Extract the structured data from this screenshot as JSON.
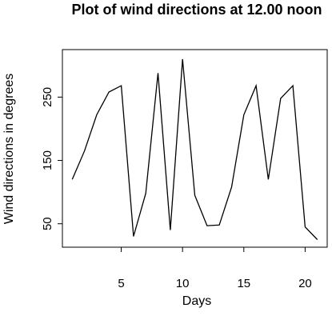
{
  "chart_data": {
    "type": "line",
    "title": "Plot of wind directions at 12.00 noon",
    "xlabel": "Days",
    "ylabel": "Wind directions in degrees",
    "x": [
      1,
      2,
      3,
      4,
      5,
      6,
      7,
      8,
      9,
      10,
      11,
      12,
      13,
      14,
      15,
      16,
      17,
      18,
      19,
      20,
      21
    ],
    "series": [
      {
        "values": [
          120,
          165,
          222,
          258,
          268,
          30,
          98,
          288,
          40,
          310,
          95,
          47,
          48,
          108,
          222,
          268,
          120,
          248,
          268,
          45,
          25
        ]
      }
    ],
    "xlim": [
      0.2,
      21.8
    ],
    "ylim": [
      13,
      325
    ],
    "xticks": [
      5,
      10,
      15,
      20
    ],
    "yticks": [
      50,
      150,
      250
    ],
    "xtick_labels": [
      "5",
      "10",
      "15",
      "20"
    ],
    "ytick_labels": [
      "50",
      "150",
      "250"
    ],
    "grid": false,
    "legend": "none",
    "line_color": "#000000"
  }
}
